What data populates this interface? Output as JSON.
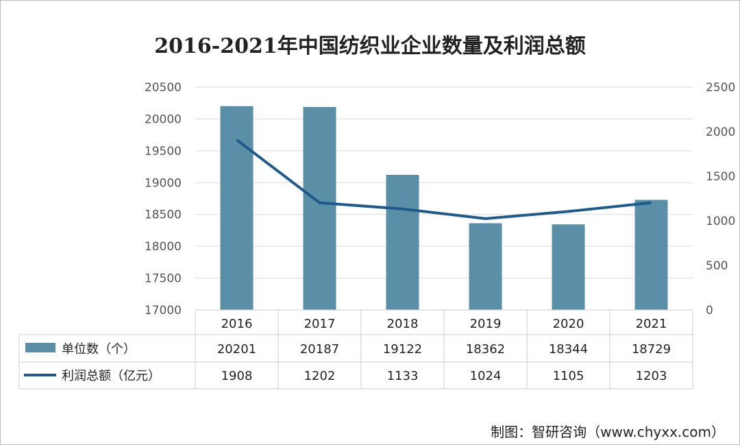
{
  "chart_data": {
    "type": "bar+line",
    "title": "2016-2021年中国纺织业企业数量及利润总额",
    "categories": [
      "2016",
      "2017",
      "2018",
      "2019",
      "2020",
      "2021"
    ],
    "series": [
      {
        "name": "单位数（个）",
        "type": "bar",
        "axis": "left",
        "color": "#5b8fa8",
        "values": [
          20201,
          20187,
          19122,
          18362,
          18344,
          18729
        ]
      },
      {
        "name": "利润总额（亿元）",
        "type": "line",
        "axis": "right",
        "color": "#1f5a8a",
        "values": [
          1908,
          1202,
          1133,
          1024,
          1105,
          1203
        ]
      }
    ],
    "y_left": {
      "lim": [
        17000,
        20500
      ],
      "ticks": [
        17000,
        17500,
        18000,
        18500,
        19000,
        19500,
        20000,
        20500
      ]
    },
    "y_right": {
      "lim": [
        0,
        2500
      ],
      "ticks": [
        0,
        500,
        1000,
        1500,
        2000,
        2500
      ]
    },
    "grid": true,
    "legend": "data-table"
  },
  "footer": "制图：智研咨询（www.chyxx.com）"
}
